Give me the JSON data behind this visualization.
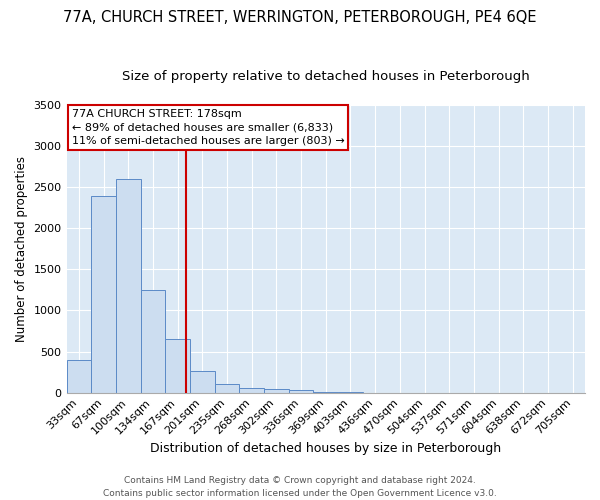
{
  "title1": "77A, CHURCH STREET, WERRINGTON, PETERBOROUGH, PE4 6QE",
  "title2": "Size of property relative to detached houses in Peterborough",
  "xlabel": "Distribution of detached houses by size in Peterborough",
  "ylabel": "Number of detached properties",
  "footnote1": "Contains HM Land Registry data © Crown copyright and database right 2024.",
  "footnote2": "Contains public sector information licensed under the Open Government Licence v3.0.",
  "categories": [
    "33sqm",
    "67sqm",
    "100sqm",
    "134sqm",
    "167sqm",
    "201sqm",
    "235sqm",
    "268sqm",
    "302sqm",
    "336sqm",
    "369sqm",
    "403sqm",
    "436sqm",
    "470sqm",
    "504sqm",
    "537sqm",
    "571sqm",
    "604sqm",
    "638sqm",
    "672sqm",
    "705sqm"
  ],
  "values": [
    400,
    2390,
    2600,
    1250,
    650,
    260,
    105,
    62,
    42,
    28,
    12,
    5,
    0,
    0,
    0,
    0,
    0,
    0,
    0,
    0,
    0
  ],
  "bar_color": "#ccddf0",
  "bar_edge_color": "#5b8ac7",
  "background_color": "#dce9f5",
  "grid_color": "#ffffff",
  "red_line_color": "#cc0000",
  "annotation_line1": "77A CHURCH STREET: 178sqm",
  "annotation_line2": "← 89% of detached houses are smaller (6,833)",
  "annotation_line3": "11% of semi-detached houses are larger (803) →",
  "annotation_box_color": "#cc0000",
  "ylim": [
    0,
    3500
  ],
  "yticks": [
    0,
    500,
    1000,
    1500,
    2000,
    2500,
    3000,
    3500
  ],
  "title1_fontsize": 10.5,
  "title2_fontsize": 9.5,
  "xlabel_fontsize": 9,
  "ylabel_fontsize": 8.5,
  "tick_fontsize": 8,
  "annotation_fontsize": 8,
  "footnote_fontsize": 6.5
}
